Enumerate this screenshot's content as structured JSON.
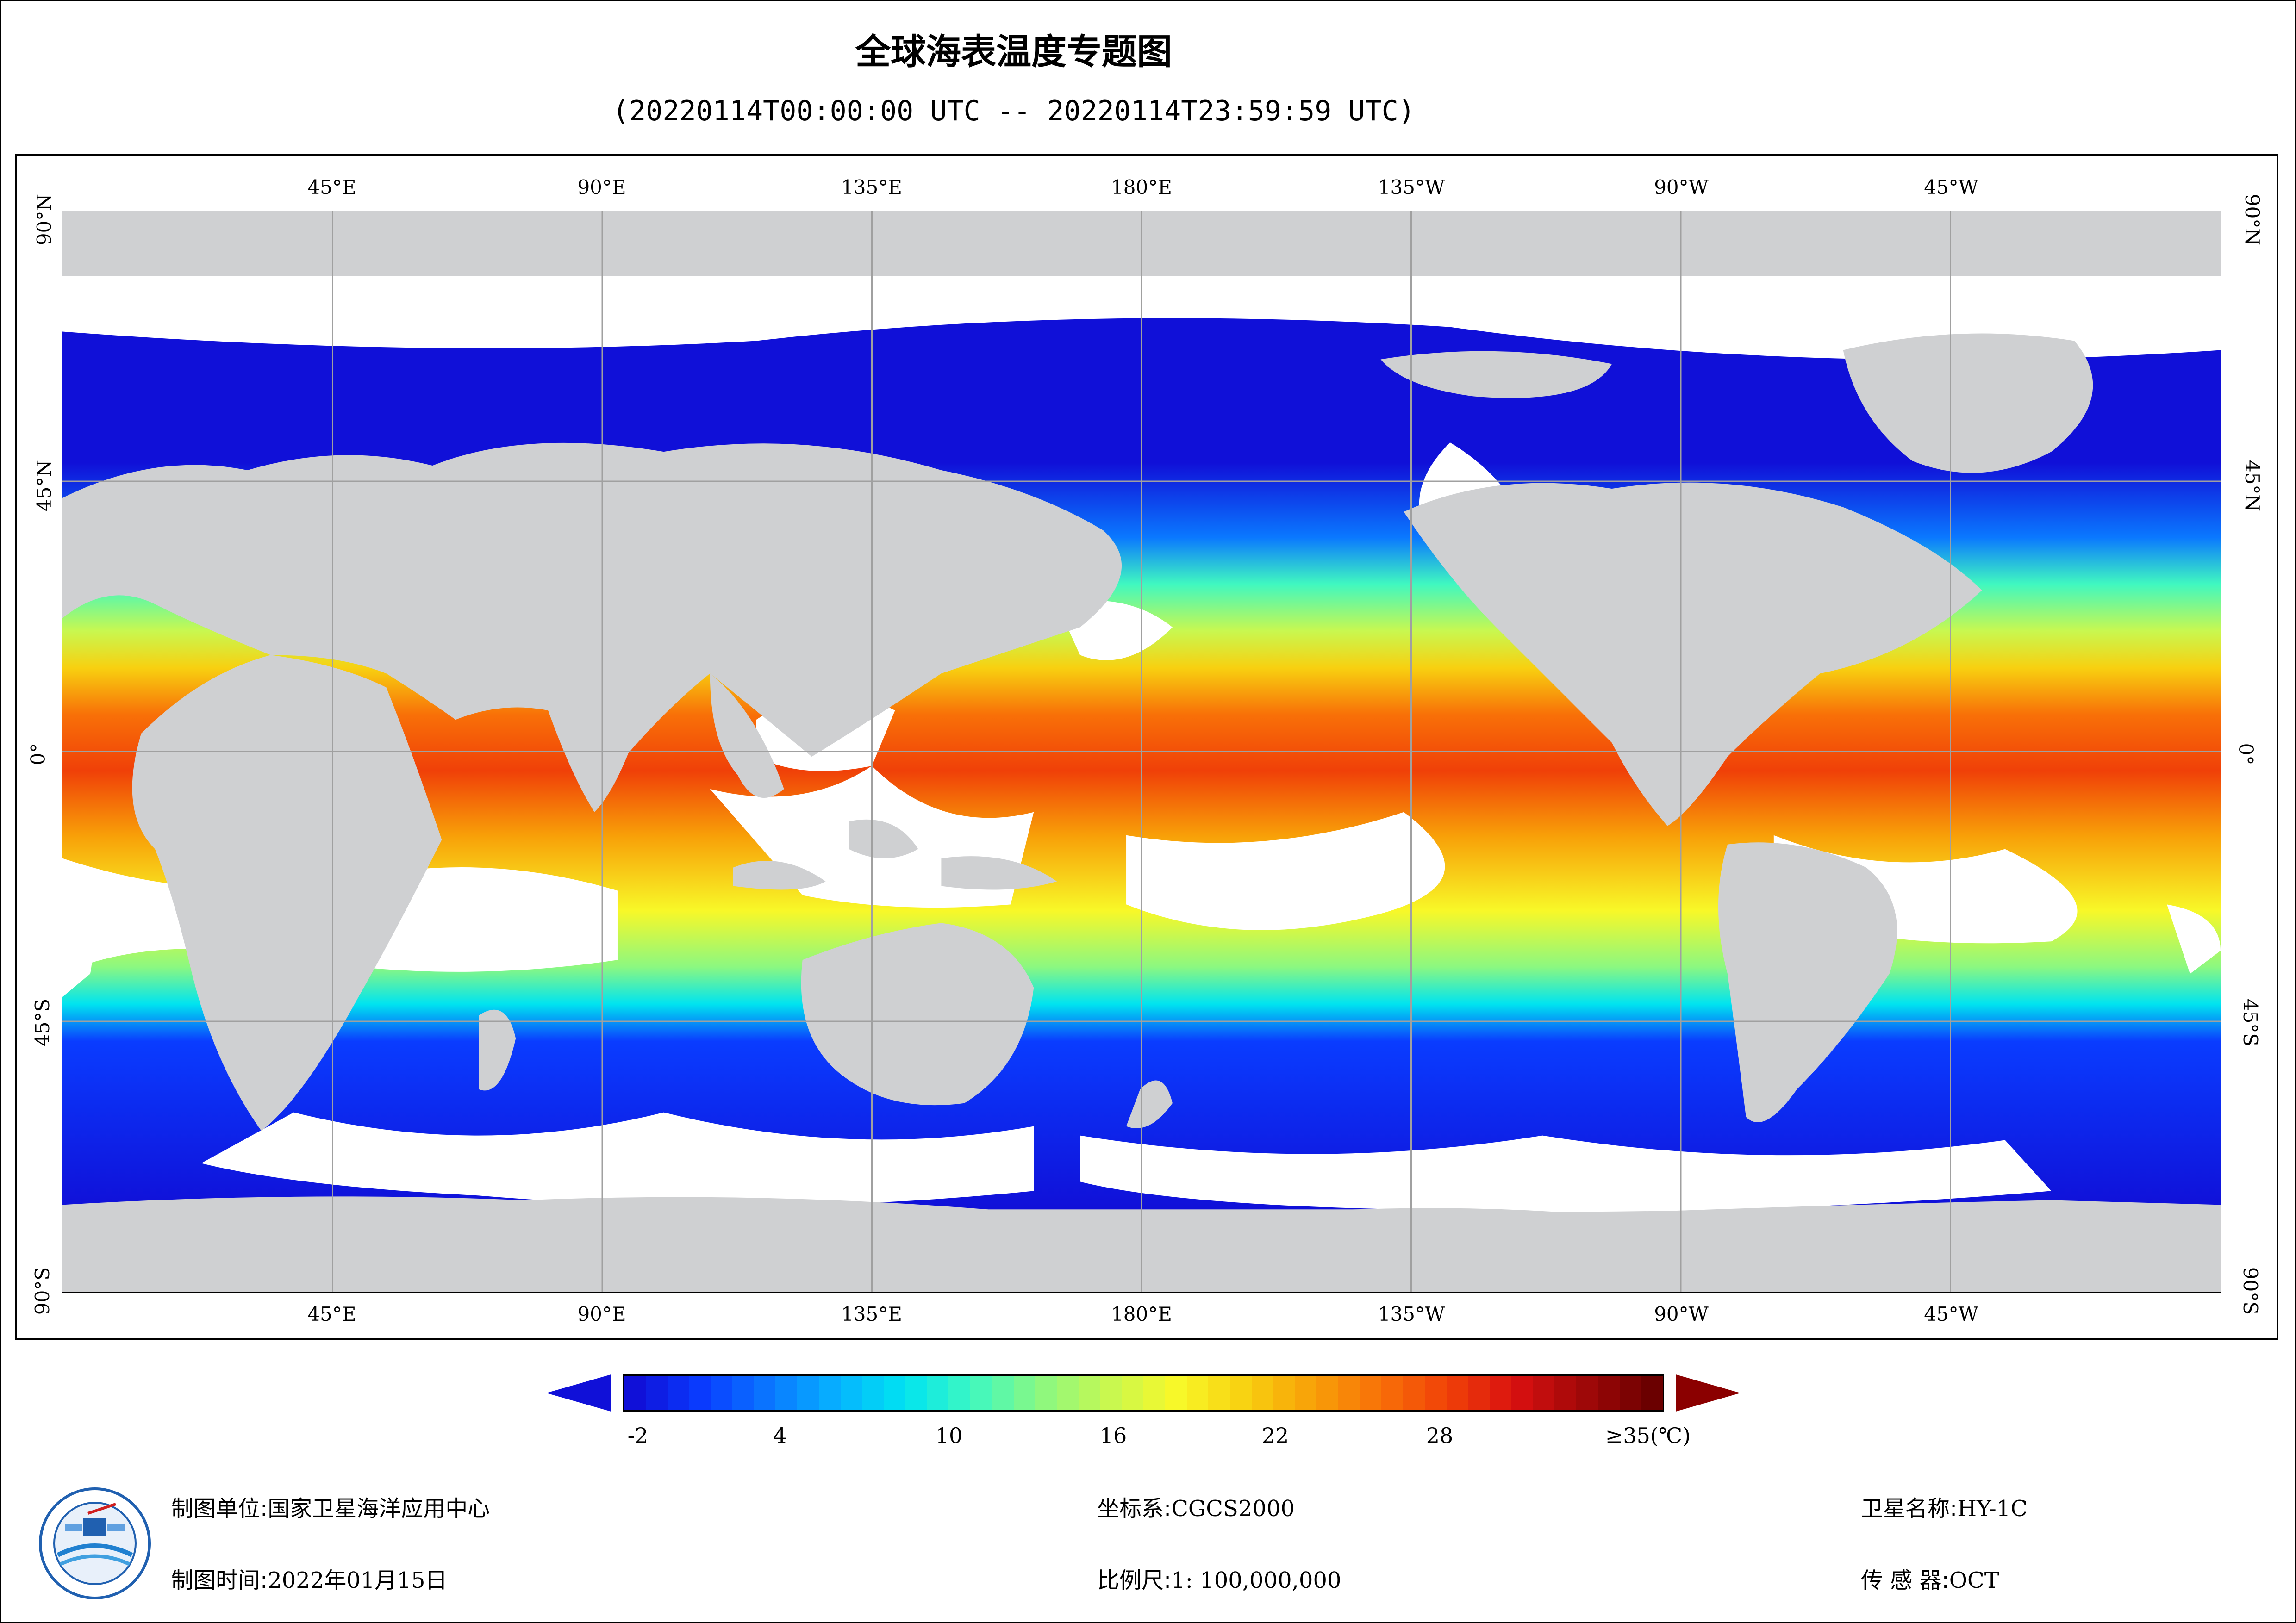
{
  "title": "全球海表温度专题图",
  "subtitle": "(20220114T00:00:00 UTC -- 20220114T23:59:59 UTC)",
  "map": {
    "type": "global-sea-surface-temperature",
    "land_color": "#cfd0d2",
    "no_data_color": "#ffffff",
    "lon_ticks": [
      "45°E",
      "90°E",
      "135°E",
      "180°E",
      "135°W",
      "90°W",
      "45°W"
    ],
    "lat_ticks": [
      "90°N",
      "45°N",
      "0°",
      "45°S",
      "90°S"
    ],
    "lon_range": [
      0,
      360
    ],
    "lat_range": [
      -90,
      90
    ],
    "grid": true
  },
  "colorbar": {
    "unit": "(℃)",
    "min": -2,
    "max": 35,
    "tick_labels": [
      "-2",
      "4",
      "10",
      "16",
      "22",
      "28",
      "≥35(℃)"
    ],
    "tick_values": [
      -2,
      4,
      10,
      16,
      22,
      28,
      35
    ],
    "colors": [
      "#1010d8",
      "#0a3cff",
      "#0a78ff",
      "#06b4ff",
      "#00e4f0",
      "#40f8c0",
      "#8cf880",
      "#c8f850",
      "#f8f828",
      "#f8d010",
      "#f8a008",
      "#f87008",
      "#f04008",
      "#d81010",
      "#a00808",
      "#6b0000"
    ]
  },
  "footer": {
    "producer_label": "制图单位:",
    "producer_value": "国家卫星海洋应用中心",
    "time_label": "制图时间:",
    "time_value": "2022年01月15日",
    "crs_label": "坐标系:",
    "crs_value": "CGCS2000",
    "scale_label": "比例尺:",
    "scale_value": "1: 100,000,000",
    "satellite_label": "卫星名称:",
    "satellite_value": "HY-1C",
    "sensor_label": "传 感 器:",
    "sensor_value": "OCT"
  }
}
